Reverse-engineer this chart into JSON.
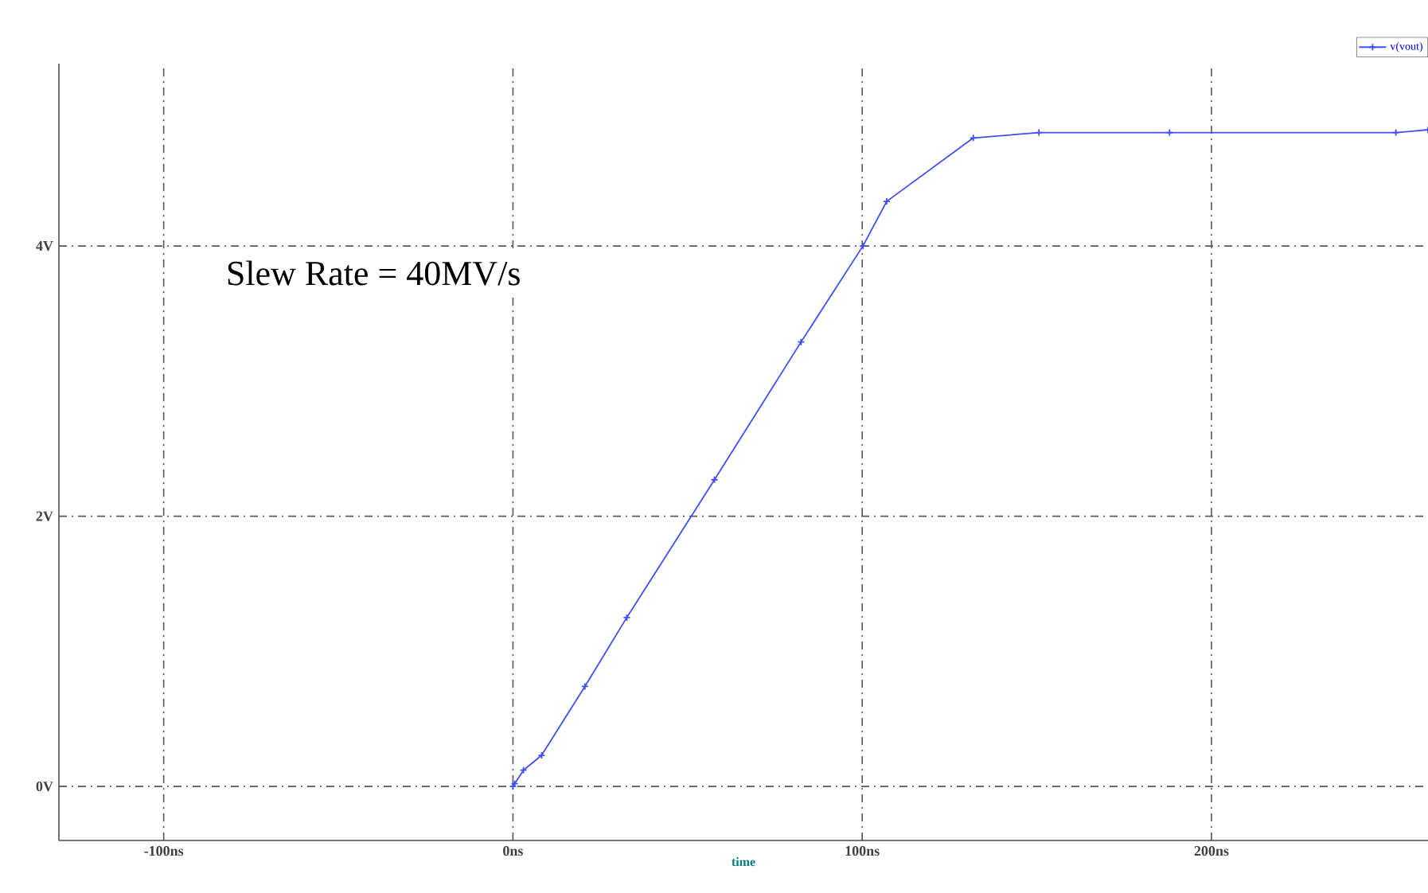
{
  "chart_data": {
    "type": "line",
    "xlabel": "time",
    "annotations": [
      "Slew Rate = 40MV/s"
    ],
    "series": [
      {
        "name": "v(vout)",
        "color": "#3f4ff0",
        "x": [
          0,
          0.5,
          3,
          8.2,
          20.6,
          32.6,
          57.7,
          82.5,
          100.2,
          107,
          131.8,
          150.6,
          188,
          252.8,
          262
        ],
        "values": [
          0,
          0.02,
          0.12,
          0.23,
          0.74,
          1.25,
          2.27,
          3.29,
          4.0,
          4.33,
          4.8,
          4.84,
          4.84,
          4.84,
          4.86
        ]
      }
    ],
    "xlim": [
      -130,
      262
    ],
    "ylim": [
      -0.4,
      5.35
    ],
    "xticks": [
      {
        "value": -100,
        "label": "-100ns"
      },
      {
        "value": 0,
        "label": "0ns"
      },
      {
        "value": 100,
        "label": "100ns"
      },
      {
        "value": 200,
        "label": "200ns"
      }
    ],
    "yticks": [
      {
        "value": 0,
        "label": "0V"
      },
      {
        "value": 2,
        "label": "2V"
      },
      {
        "value": 4,
        "label": "4V"
      }
    ],
    "grid": true,
    "legend": "top right",
    "marker": "cross",
    "line_style": "solid"
  }
}
